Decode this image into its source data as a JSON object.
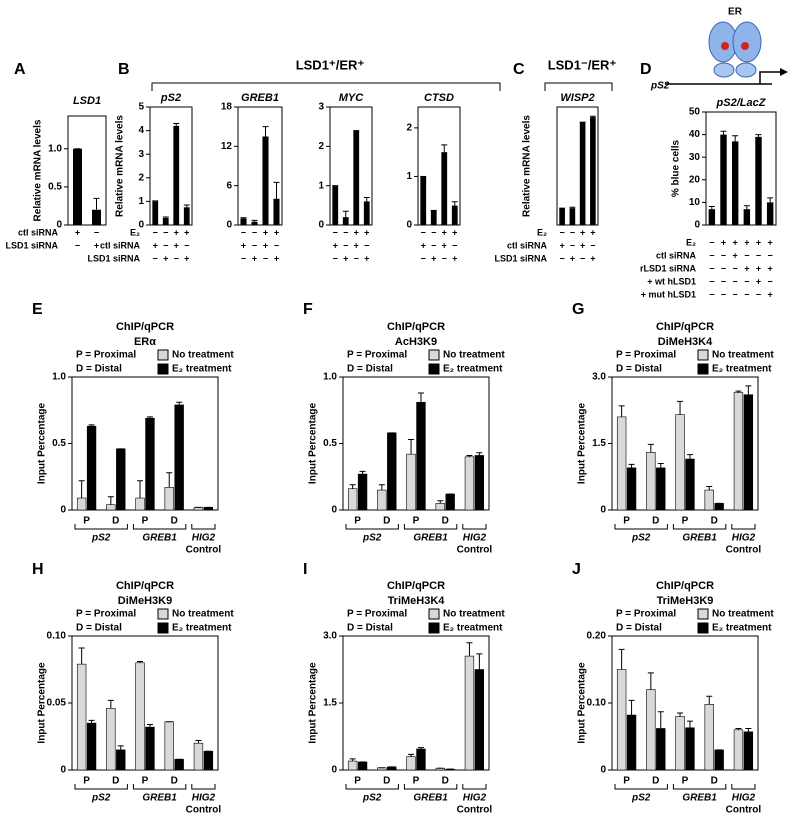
{
  "chart_data": [
    {
      "type": "bar",
      "panel": "A",
      "title": "LSD1",
      "ylabel": "Relative mRNA levels",
      "ylim": [
        0,
        1.43
      ],
      "yticks": [
        0,
        0.5,
        {
          "value": 1,
          "label": "1.0"
        }
      ],
      "color": "#000000",
      "values": [
        1.0,
        0.2
      ],
      "errors": [
        0,
        0.15
      ],
      "condition_labels": [
        "ctl siRNA",
        "LSD1 siRNA"
      ],
      "condition_marks": [
        [
          "+",
          "−"
        ],
        [
          "−",
          "+"
        ]
      ]
    },
    {
      "type": "bar",
      "panel": "B",
      "header": "LSD1⁺/ER⁺",
      "title": "pS2",
      "ylabel": "Relative mRNA levels",
      "ylim": [
        0,
        5
      ],
      "yticks": [
        0,
        1,
        2,
        3,
        4,
        5
      ],
      "color": "#000000",
      "values": [
        1.0,
        0.3,
        4.2,
        0.75
      ],
      "errors": [
        0.02,
        0.04,
        0.1,
        0.1
      ],
      "condition_labels": [
        "E₂",
        "ctl siRNA",
        "LSD1 siRNA"
      ],
      "condition_marks": [
        [
          "−",
          "−",
          "+",
          "+"
        ],
        [
          "+",
          "−",
          "+",
          "−"
        ],
        [
          "−",
          "+",
          "−",
          "+"
        ]
      ]
    },
    {
      "type": "bar",
      "title": "GREB1",
      "ylim": [
        0,
        18
      ],
      "yticks": [
        0,
        6,
        12,
        18
      ],
      "color": "#000000",
      "values": [
        1.0,
        0.5,
        13.5,
        4.0
      ],
      "errors": [
        0.1,
        0.2,
        1.5,
        2.5
      ],
      "condition_marks": [
        [
          "−",
          "−",
          "+",
          "+"
        ],
        [
          "+",
          "−",
          "+",
          "−"
        ],
        [
          "−",
          "+",
          "−",
          "+"
        ]
      ]
    },
    {
      "type": "bar",
      "title": "MYC",
      "ylim": [
        0,
        3
      ],
      "yticks": [
        0,
        1,
        2,
        3
      ],
      "color": "#000000",
      "values": [
        1.0,
        0.2,
        2.4,
        0.6
      ],
      "errors": [
        0,
        0.15,
        0,
        0.1
      ],
      "condition_marks": [
        [
          "−",
          "−",
          "+",
          "+"
        ],
        [
          "+",
          "−",
          "+",
          "−"
        ],
        [
          "−",
          "+",
          "−",
          "+"
        ]
      ]
    },
    {
      "type": "bar",
      "title": "CTSD",
      "ylim": [
        0,
        2.43
      ],
      "yticks": [
        0,
        1,
        2
      ],
      "color": "#000000",
      "values": [
        1.0,
        0.3,
        1.5,
        0.4
      ],
      "errors": [
        0,
        0,
        0.15,
        0.08
      ],
      "condition_marks": [
        [
          "−",
          "−",
          "+",
          "+"
        ],
        [
          "+",
          "−",
          "+",
          "−"
        ],
        [
          "−",
          "+",
          "−",
          "+"
        ]
      ]
    },
    {
      "type": "bar",
      "panel": "C",
      "header": "LSD1⁻/ER⁺",
      "title": "WISP2",
      "ylabel": "Relative mRNA levels",
      "ylim": [
        0,
        7
      ],
      "color": "#000000",
      "values": [
        1.0,
        1.0,
        6.1,
        6.4
      ],
      "errors": [
        0,
        0.05,
        0,
        0.05
      ],
      "condition_labels": [
        "E₂",
        "ctl siRNA",
        "LSD1 siRNA"
      ],
      "condition_marks": [
        [
          "−",
          "−",
          "+",
          "+"
        ],
        [
          "+",
          "−",
          "+",
          "−"
        ],
        [
          "−",
          "+",
          "−",
          "+"
        ]
      ]
    },
    {
      "type": "bar",
      "panel": "D",
      "diagram_labels": [
        "ER",
        "pS2"
      ],
      "title": "pS2/LacZ",
      "ylabel": "% blue cells",
      "ylim": [
        0,
        50
      ],
      "yticks": [
        0,
        10,
        20,
        30,
        40,
        50
      ],
      "color": "#000000",
      "values": [
        7,
        40,
        37,
        7,
        39,
        10
      ],
      "errors": [
        1.2,
        1.5,
        2.5,
        1.5,
        1,
        2
      ],
      "condition_labels": [
        "E₂",
        "ctl siRNA",
        "rLSD1 siRNA",
        "+ wt hLSD1",
        "+ mut hLSD1"
      ],
      "condition_marks": [
        [
          "−",
          "+",
          "+",
          "+",
          "+",
          "+"
        ],
        [
          "−",
          "−",
          "+",
          "−",
          "−",
          "−"
        ],
        [
          "−",
          "−",
          "−",
          "+",
          "+",
          "+"
        ],
        [
          "−",
          "−",
          "−",
          "−",
          "+",
          "−"
        ],
        [
          "−",
          "−",
          "−",
          "−",
          "−",
          "+"
        ]
      ]
    },
    {
      "type": "grouped_bar",
      "panel": "E",
      "title": "ChIP/qPCR",
      "subtitle": "ERα",
      "notes": [
        "P = Proximal",
        "D = Distal"
      ],
      "ylabel": "Input Percentage",
      "ylim": [
        0,
        1.0
      ],
      "yticks": [
        0,
        0.5,
        {
          "value": 1,
          "label": "1.0"
        }
      ],
      "categories": [
        "P",
        "D",
        "P",
        "D",
        null
      ],
      "groups": [
        {
          "label": "pS2"
        },
        {
          "label": "GREB1"
        },
        {
          "label": "HIG2",
          "sublabel": "Control"
        }
      ],
      "series": [
        {
          "name": "No treatment",
          "color": "#d9d9d9",
          "values": [
            0.09,
            0.04,
            0.09,
            0.17,
            0.02
          ],
          "errors": [
            0.13,
            0.06,
            0.13,
            0.11,
            0
          ]
        },
        {
          "name": "E₂ treatment",
          "color": "#000000",
          "values": [
            0.63,
            0.46,
            0.69,
            0.79,
            0.02
          ],
          "errors": [
            0.01,
            0,
            0.01,
            0.02,
            0
          ]
        }
      ]
    },
    {
      "type": "grouped_bar",
      "panel": "F",
      "title": "ChIP/qPCR",
      "subtitle": "AcH3K9",
      "notes": [
        "P = Proximal",
        "D = Distal"
      ],
      "ylabel": "Input Percentage",
      "ylim": [
        0,
        1.0
      ],
      "yticks": [
        0,
        0.5,
        {
          "value": 1,
          "label": "1.0"
        }
      ],
      "categories": [
        "P",
        "D",
        "P",
        "D",
        null
      ],
      "groups": [
        {
          "label": "pS2"
        },
        {
          "label": "GREB1"
        },
        {
          "label": "HIG2",
          "sublabel": "Control"
        }
      ],
      "series": [
        {
          "name": "No treatment",
          "color": "#d9d9d9",
          "values": [
            0.16,
            0.15,
            0.42,
            0.05,
            0.4
          ],
          "errors": [
            0.03,
            0.04,
            0.11,
            0.02,
            0.01
          ]
        },
        {
          "name": "E₂ treatment",
          "color": "#000000",
          "values": [
            0.27,
            0.58,
            0.81,
            0.12,
            0.41
          ],
          "errors": [
            0.02,
            0,
            0.07,
            0,
            0.02
          ]
        }
      ]
    },
    {
      "type": "grouped_bar",
      "panel": "G",
      "title": "ChIP/qPCR",
      "subtitle": "DiMeH3K4",
      "notes": [
        "P = Proximal",
        "D = Distal"
      ],
      "ylabel": "Input Percentage",
      "ylim": [
        0,
        3.0
      ],
      "yticks": [
        0,
        1.5,
        {
          "value": 3,
          "label": "3.0"
        }
      ],
      "categories": [
        "P",
        "D",
        "P",
        "D",
        null
      ],
      "groups": [
        {
          "label": "pS2"
        },
        {
          "label": "GREB1"
        },
        {
          "label": "HIG2",
          "sublabel": "Control"
        }
      ],
      "series": [
        {
          "name": "No treatment",
          "color": "#d9d9d9",
          "values": [
            2.1,
            1.3,
            2.15,
            0.45,
            2.65
          ],
          "errors": [
            0.25,
            0.18,
            0.3,
            0.08,
            0.03
          ]
        },
        {
          "name": "E₂ treatment",
          "color": "#000000",
          "values": [
            0.95,
            0.95,
            1.15,
            0.15,
            2.6
          ],
          "errors": [
            0.08,
            0.1,
            0.1,
            0,
            0.2
          ]
        }
      ]
    },
    {
      "type": "grouped_bar",
      "panel": "H",
      "title": "ChIP/qPCR",
      "subtitle": "DiMeH3K9",
      "notes": [
        "P = Proximal",
        "D = Distal"
      ],
      "ylabel": "Input Percentage",
      "ylim": [
        0,
        0.1
      ],
      "yticks": [
        0,
        0.05,
        {
          "value": 0.1,
          "label": "0.10"
        }
      ],
      "categories": [
        "P",
        "D",
        "P",
        "D",
        null
      ],
      "groups": [
        {
          "label": "pS2"
        },
        {
          "label": "GREB1"
        },
        {
          "label": "HIG2",
          "sublabel": "Control"
        }
      ],
      "series": [
        {
          "name": "No treatment",
          "color": "#d9d9d9",
          "values": [
            0.079,
            0.046,
            0.08,
            0.036,
            0.02
          ],
          "errors": [
            0.012,
            0.006,
            0.001,
            0,
            0.002
          ]
        },
        {
          "name": "E₂ treatment",
          "color": "#000000",
          "values": [
            0.035,
            0.015,
            0.032,
            0.008,
            0.014
          ],
          "errors": [
            0.002,
            0.003,
            0.002,
            0,
            0
          ]
        }
      ]
    },
    {
      "type": "grouped_bar",
      "panel": "I",
      "title": "ChIP/qPCR",
      "subtitle": "TriMeH3K4",
      "notes": [
        "P = Proximal",
        "D = Distal"
      ],
      "ylabel": "Input Percentage",
      "ylim": [
        0,
        3.0
      ],
      "yticks": [
        0,
        1.5,
        {
          "value": 3,
          "label": "3.0"
        }
      ],
      "categories": [
        "P",
        "D",
        "P",
        "D",
        null
      ],
      "groups": [
        {
          "label": "pS2"
        },
        {
          "label": "GREB1"
        },
        {
          "label": "HIG2",
          "sublabel": "Control"
        }
      ],
      "series": [
        {
          "name": "No treatment",
          "color": "#d9d9d9",
          "values": [
            0.2,
            0.05,
            0.3,
            0.04,
            2.55
          ],
          "errors": [
            0.05,
            0,
            0.05,
            0,
            0.3
          ]
        },
        {
          "name": "E₂ treatment",
          "color": "#000000",
          "values": [
            0.18,
            0.07,
            0.47,
            0.02,
            2.25
          ],
          "errors": [
            0,
            0,
            0.03,
            0,
            0.35
          ]
        }
      ]
    },
    {
      "type": "grouped_bar",
      "panel": "J",
      "title": "ChIP/qPCR",
      "subtitle": "TriMeH3K9",
      "notes": [
        "P = Proximal",
        "D = Distal"
      ],
      "ylabel": "Input Percentage",
      "ylim": [
        0,
        0.2
      ],
      "yticks": [
        0,
        {
          "value": 0.1,
          "label": "0.10"
        },
        {
          "value": 0.2,
          "label": "0.20"
        }
      ],
      "categories": [
        "P",
        "D",
        "P",
        "D",
        null
      ],
      "groups": [
        {
          "label": "pS2"
        },
        {
          "label": "GREB1"
        },
        {
          "label": "HIG2",
          "sublabel": "Control"
        }
      ],
      "series": [
        {
          "name": "No treatment",
          "color": "#d9d9d9",
          "values": [
            0.15,
            0.12,
            0.08,
            0.098,
            0.06
          ],
          "errors": [
            0.03,
            0.025,
            0.005,
            0.012,
            0.002
          ]
        },
        {
          "name": "E₂ treatment",
          "color": "#000000",
          "values": [
            0.082,
            0.062,
            0.063,
            0.03,
            0.057
          ],
          "errors": [
            0.022,
            0.025,
            0.01,
            0,
            0.005
          ]
        }
      ]
    }
  ]
}
